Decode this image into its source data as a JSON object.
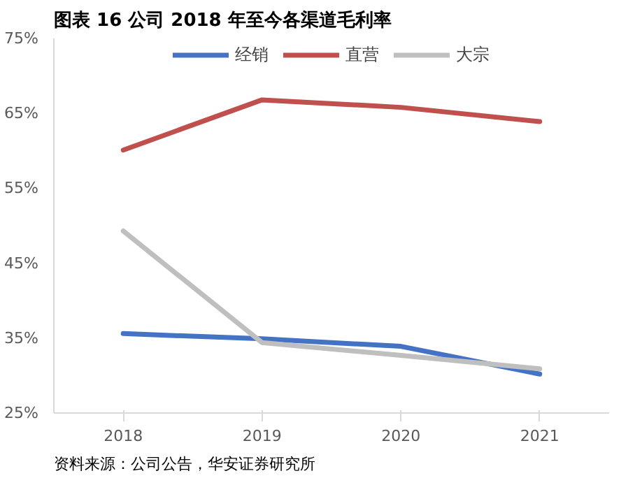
{
  "chart_data": {
    "type": "line",
    "title": "图表 16 公司 2018 年至今各渠道毛利率",
    "categories": [
      "2018",
      "2019",
      "2020",
      "2021"
    ],
    "series": [
      {
        "name": "经销",
        "color": "#4472c4",
        "values": [
          35.6,
          34.9,
          33.9,
          30.2
        ]
      },
      {
        "name": "直营",
        "color": "#c0504d",
        "values": [
          60.1,
          66.8,
          65.8,
          63.9
        ]
      },
      {
        "name": "大宗",
        "color": "#bfbfbf",
        "values": [
          49.3,
          34.4,
          32.7,
          30.9
        ]
      }
    ],
    "ylim": [
      25,
      75
    ],
    "yticks": [
      {
        "value": 25,
        "label": "25%"
      },
      {
        "value": 35,
        "label": "35%"
      },
      {
        "value": 45,
        "label": "45%"
      },
      {
        "value": 55,
        "label": "55%"
      },
      {
        "value": 65,
        "label": "65%"
      },
      {
        "value": 75,
        "label": "75%"
      }
    ],
    "grid": false,
    "legend": "top",
    "marker": "none",
    "line_style": "solid",
    "annotations": [
      "资料来源：公司公告，华安证券研究所"
    ]
  }
}
